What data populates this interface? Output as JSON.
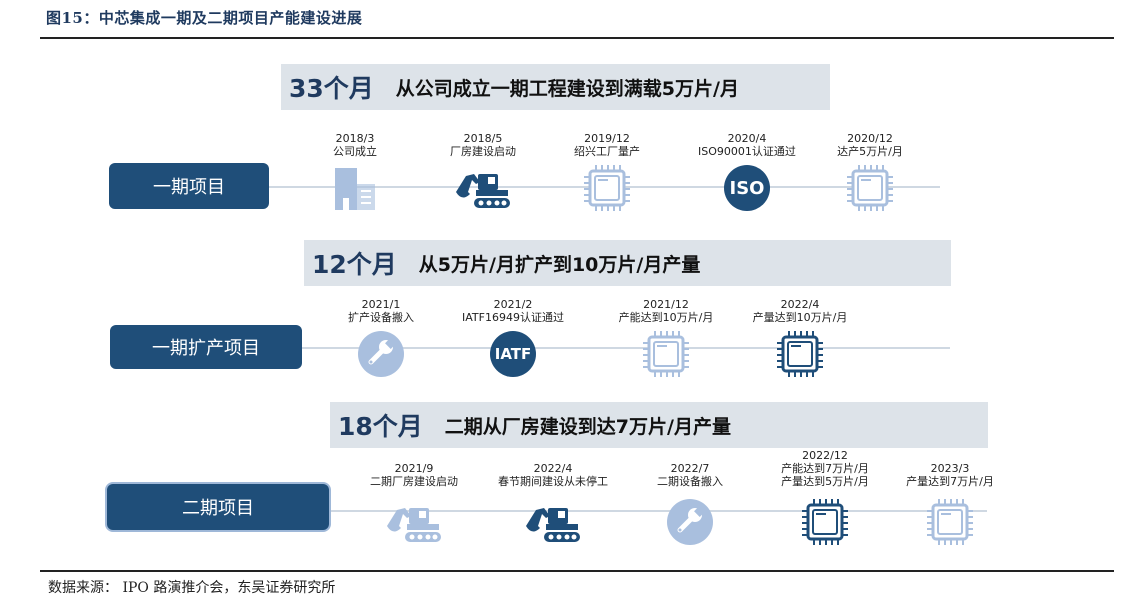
{
  "figure": {
    "title": "图15：中芯集成一期及二期项目产能建设进展",
    "source": "数据来源：  IPO 路演推介会，东吴证券研究所"
  },
  "rows": [
    {
      "duration": "33个月",
      "description": "从公司成立一期工程建设到满载5万片/月",
      "project": "一期项目",
      "events": [
        {
          "date": "2018/3",
          "text": "公司成立",
          "icon": "building-icon",
          "style": "light"
        },
        {
          "date": "2018/5",
          "text": "厂房建设启动",
          "icon": "excavator-icon",
          "style": "dark"
        },
        {
          "date": "2019/12",
          "text": "绍兴工厂量产",
          "icon": "chip-icon",
          "style": "light"
        },
        {
          "date": "2020/4",
          "text": "ISO90001认证通过",
          "icon": "iso-badge-icon",
          "style": "dark",
          "badge": "ISO"
        },
        {
          "date": "2020/12",
          "text": "达产5万片/月",
          "icon": "chip-icon",
          "style": "light"
        }
      ]
    },
    {
      "duration": "12个月",
      "description": "从5万片/月扩产到10万片/月产量",
      "project": "一期扩产项目",
      "events": [
        {
          "date": "2021/1",
          "text": "扩产设备搬入",
          "icon": "wrench-icon",
          "style": "light"
        },
        {
          "date": "2021/2",
          "text": "IATF16949认证通过",
          "icon": "iatf-badge-icon",
          "style": "dark",
          "badge": "IATF"
        },
        {
          "date": "2021/12",
          "text": "产能达到10万片/月",
          "icon": "chip-icon",
          "style": "light"
        },
        {
          "date": "2022/4",
          "text": "产量达到10万片/月",
          "icon": "chip-icon",
          "style": "dark"
        }
      ]
    },
    {
      "duration": "18个月",
      "description": "二期从厂房建设到达7万片/月产量",
      "project": "二期项目",
      "events": [
        {
          "date": "2021/9",
          "text": "二期厂房建设启动",
          "icon": "excavator-icon",
          "style": "light"
        },
        {
          "date": "2022/4",
          "text": "春节期间建设从未停工",
          "icon": "excavator-icon",
          "style": "dark"
        },
        {
          "date": "2022/7",
          "text": "二期设备搬入",
          "icon": "wrench-icon",
          "style": "light"
        },
        {
          "date": "2022/12",
          "text": "产能达到7万片/月\n产量达到5万片/月",
          "icon": "chip-icon",
          "style": "dark"
        },
        {
          "date": "2023/3",
          "text": "产量达到7万片/月",
          "icon": "chip-icon",
          "style": "light"
        }
      ]
    }
  ],
  "colors": {
    "dark": "#1f4e79",
    "light": "#a9bfde",
    "banner": "#dde3e9",
    "line": "#cfd8e2"
  }
}
